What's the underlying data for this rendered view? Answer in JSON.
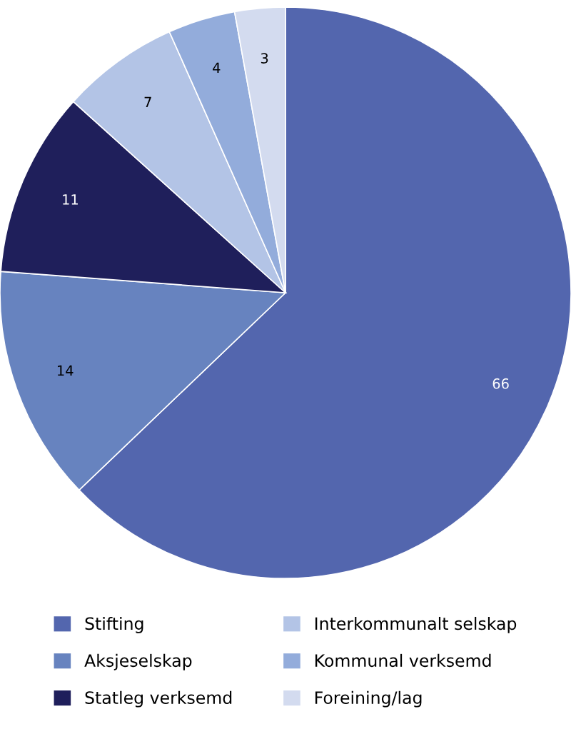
{
  "chart_data": {
    "type": "pie",
    "categories": [
      "Stifting",
      "Aksjeselskap",
      "Statleg verksemd",
      "Interkommunalt selskap",
      "Kommunal verksemd",
      "Foreining/lag"
    ],
    "values": [
      66,
      14,
      11,
      7,
      4,
      3
    ],
    "colors": [
      "#5366ae",
      "#6783bf",
      "#1f1f5b",
      "#b3c4e6",
      "#93acdb",
      "#d3dbef"
    ],
    "data_labels": true,
    "legend": "bottom"
  }
}
